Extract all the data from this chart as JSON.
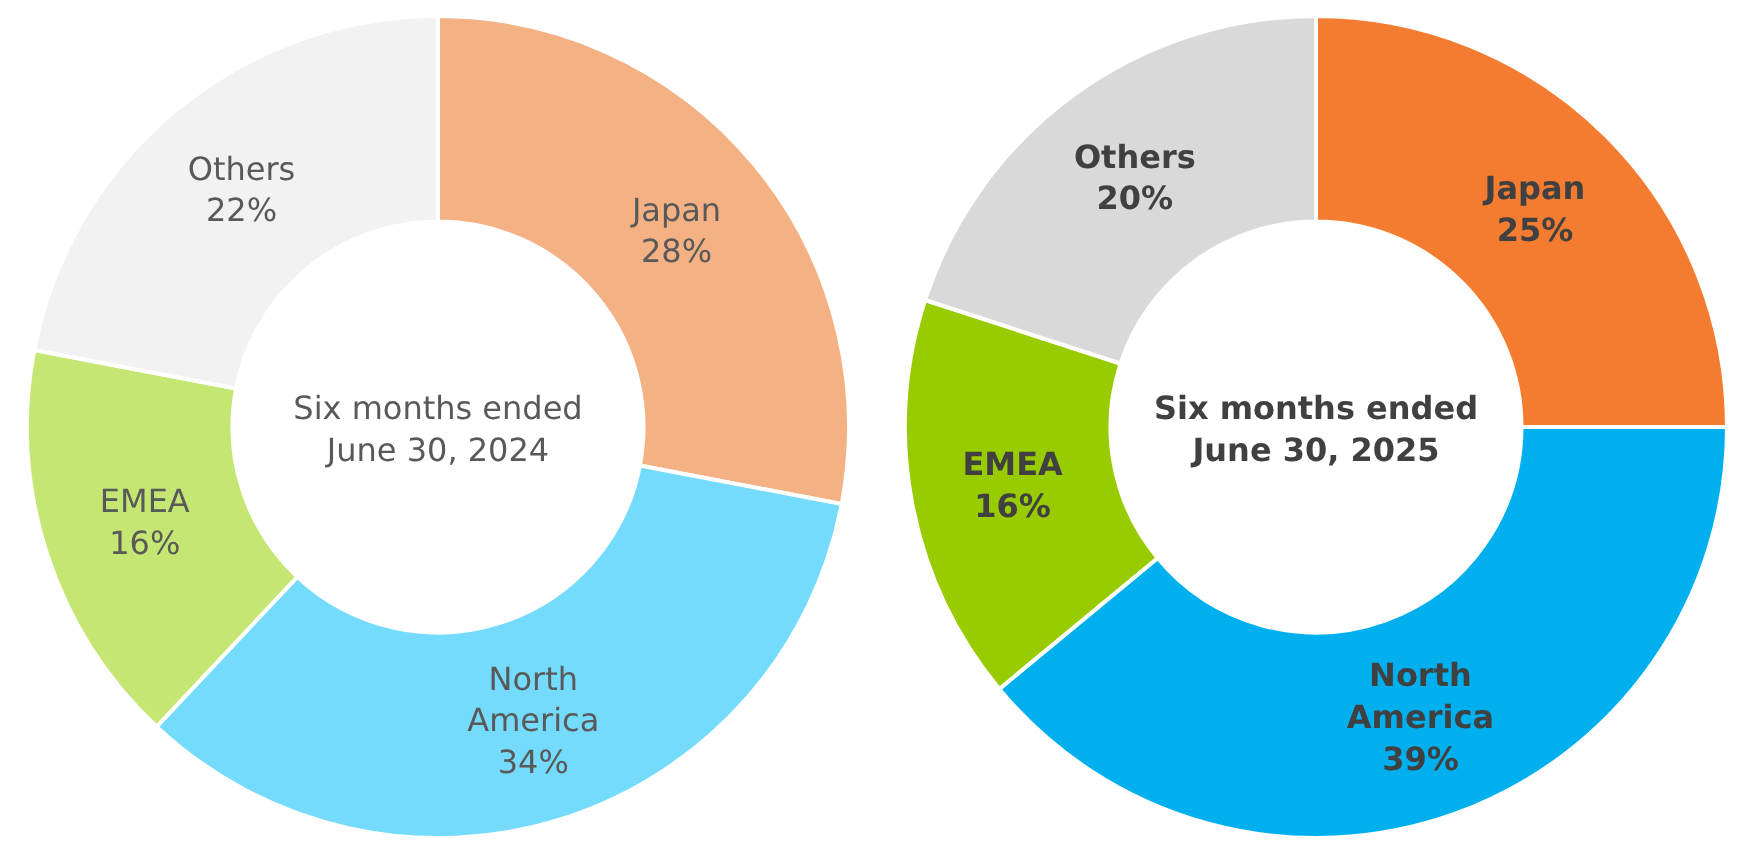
{
  "chart_data": [
    {
      "type": "donut",
      "title": "Six months ended June 30, 2024",
      "categories": [
        "Japan",
        "North America",
        "EMEA",
        "Others"
      ],
      "values": [
        28,
        34,
        16,
        22
      ],
      "value_labels": [
        "28%",
        "34%",
        "16%",
        "22%"
      ],
      "colors": [
        "#f4b183",
        "#75dbfc",
        "#c5e673",
        "#f2f2f2"
      ]
    },
    {
      "type": "donut",
      "title": "Six months ended June 30, 2025",
      "categories": [
        "Japan",
        "North America",
        "EMEA",
        "Others"
      ],
      "values": [
        25,
        39,
        16,
        20
      ],
      "value_labels": [
        "25%",
        "39%",
        "16%",
        "20%"
      ],
      "colors": [
        "#f47c30",
        "#00b0ee",
        "#99cc00",
        "#d9d9d9"
      ]
    }
  ]
}
